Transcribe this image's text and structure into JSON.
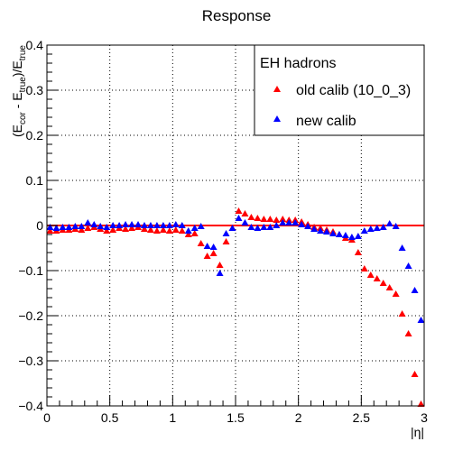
{
  "chart_data": {
    "type": "scatter",
    "title": "Response",
    "xlabel": "|η|",
    "ylabel": "(E_cor - E_true)/E_true",
    "ylabel_parts": {
      "open": "(E",
      "sub1": "cor",
      "minus": " - E",
      "sub2": "true",
      "close": ")/E",
      "sub3": "true"
    },
    "xlim": [
      0,
      3
    ],
    "ylim": [
      -0.4,
      0.4
    ],
    "xticks": [
      0,
      0.5,
      1,
      1.5,
      2,
      2.5,
      3
    ],
    "xtick_labels": [
      "0",
      "0.5",
      "1",
      "1.5",
      "2",
      "2.5",
      "3"
    ],
    "yticks": [
      -0.4,
      -0.3,
      -0.2,
      -0.1,
      0,
      0.1,
      0.2,
      0.3,
      0.4
    ],
    "ytick_labels": [
      "−0.4",
      "−0.3",
      "−0.2",
      "−0.1",
      "0",
      "0.1",
      "0.2",
      "0.3",
      "0.4"
    ],
    "grid": true,
    "reference_line": {
      "y": 0,
      "color": "#ff0000"
    },
    "legend": {
      "title": "EH hadrons",
      "position": "top-right",
      "entries": [
        {
          "label": "old calib (10_0_3)",
          "color": "#ff0000"
        },
        {
          "label": "new calib",
          "color": "#0000ff"
        }
      ]
    },
    "series": [
      {
        "name": "old calib (10_0_3)",
        "color": "#ff0000",
        "marker": "triangle",
        "points": [
          [
            0.025,
            -0.012
          ],
          [
            0.075,
            -0.012
          ],
          [
            0.125,
            -0.01
          ],
          [
            0.175,
            -0.01
          ],
          [
            0.225,
            -0.008
          ],
          [
            0.275,
            -0.01
          ],
          [
            0.325,
            -0.006
          ],
          [
            0.375,
            -0.004
          ],
          [
            0.425,
            -0.008
          ],
          [
            0.475,
            -0.012
          ],
          [
            0.525,
            -0.01
          ],
          [
            0.575,
            -0.006
          ],
          [
            0.625,
            -0.008
          ],
          [
            0.675,
            -0.006
          ],
          [
            0.725,
            -0.004
          ],
          [
            0.775,
            -0.008
          ],
          [
            0.825,
            -0.01
          ],
          [
            0.875,
            -0.012
          ],
          [
            0.925,
            -0.01
          ],
          [
            0.975,
            -0.012
          ],
          [
            1.025,
            -0.01
          ],
          [
            1.075,
            -0.012
          ],
          [
            1.125,
            -0.02
          ],
          [
            1.175,
            -0.018
          ],
          [
            1.225,
            -0.04
          ],
          [
            1.275,
            -0.068
          ],
          [
            1.325,
            -0.062
          ],
          [
            1.375,
            -0.088
          ],
          [
            1.425,
            -0.036
          ],
          [
            1.475,
            -0.006
          ],
          [
            1.525,
            0.032
          ],
          [
            1.575,
            0.026
          ],
          [
            1.625,
            0.018
          ],
          [
            1.675,
            0.016
          ],
          [
            1.725,
            0.014
          ],
          [
            1.775,
            0.014
          ],
          [
            1.825,
            0.012
          ],
          [
            1.875,
            0.014
          ],
          [
            1.925,
            0.012
          ],
          [
            1.975,
            0.012
          ],
          [
            2.025,
            0.008
          ],
          [
            2.075,
            0.002
          ],
          [
            2.125,
            -0.004
          ],
          [
            2.175,
            -0.006
          ],
          [
            2.225,
            -0.01
          ],
          [
            2.275,
            -0.014
          ],
          [
            2.325,
            -0.02
          ],
          [
            2.375,
            -0.028
          ],
          [
            2.425,
            -0.032
          ],
          [
            2.475,
            -0.06
          ],
          [
            2.525,
            -0.096
          ],
          [
            2.575,
            -0.11
          ],
          [
            2.625,
            -0.118
          ],
          [
            2.675,
            -0.128
          ],
          [
            2.725,
            -0.138
          ],
          [
            2.775,
            -0.152
          ],
          [
            2.825,
            -0.196
          ],
          [
            2.875,
            -0.24
          ],
          [
            2.925,
            -0.33
          ],
          [
            2.975,
            -0.396
          ]
        ]
      },
      {
        "name": "new calib",
        "color": "#0000ff",
        "marker": "triangle",
        "points": [
          [
            0.025,
            -0.004
          ],
          [
            0.075,
            -0.006
          ],
          [
            0.125,
            -0.004
          ],
          [
            0.175,
            -0.004
          ],
          [
            0.225,
            -0.002
          ],
          [
            0.275,
            -0.002
          ],
          [
            0.325,
            0.006
          ],
          [
            0.375,
            0.002
          ],
          [
            0.425,
            -0.002
          ],
          [
            0.475,
            -0.004
          ],
          [
            0.525,
            0.0
          ],
          [
            0.575,
            0.0
          ],
          [
            0.625,
            0.002
          ],
          [
            0.675,
            0.002
          ],
          [
            0.725,
            0.002
          ],
          [
            0.775,
            0.0
          ],
          [
            0.825,
            0.0
          ],
          [
            0.875,
            0.0
          ],
          [
            0.925,
            0.0
          ],
          [
            0.975,
            0.0
          ],
          [
            1.025,
            0.002
          ],
          [
            1.075,
            0.0
          ],
          [
            1.125,
            -0.012
          ],
          [
            1.175,
            -0.006
          ],
          [
            1.225,
            -0.002
          ],
          [
            1.275,
            -0.046
          ],
          [
            1.325,
            -0.048
          ],
          [
            1.375,
            -0.106
          ],
          [
            1.425,
            -0.018
          ],
          [
            1.475,
            -0.006
          ],
          [
            1.525,
            0.016
          ],
          [
            1.575,
            0.006
          ],
          [
            1.625,
            -0.004
          ],
          [
            1.675,
            -0.006
          ],
          [
            1.725,
            -0.004
          ],
          [
            1.775,
            -0.004
          ],
          [
            1.825,
            0.0
          ],
          [
            1.875,
            0.006
          ],
          [
            1.925,
            0.006
          ],
          [
            1.975,
            0.006
          ],
          [
            2.025,
            0.002
          ],
          [
            2.075,
            -0.002
          ],
          [
            2.125,
            -0.008
          ],
          [
            2.175,
            -0.012
          ],
          [
            2.225,
            -0.014
          ],
          [
            2.275,
            -0.018
          ],
          [
            2.325,
            -0.02
          ],
          [
            2.375,
            -0.022
          ],
          [
            2.425,
            -0.026
          ],
          [
            2.475,
            -0.024
          ],
          [
            2.525,
            -0.012
          ],
          [
            2.575,
            -0.008
          ],
          [
            2.625,
            -0.006
          ],
          [
            2.675,
            -0.004
          ],
          [
            2.725,
            0.004
          ],
          [
            2.775,
            -0.002
          ],
          [
            2.825,
            -0.05
          ],
          [
            2.875,
            -0.09
          ],
          [
            2.925,
            -0.144
          ],
          [
            2.975,
            -0.21
          ]
        ]
      }
    ]
  }
}
